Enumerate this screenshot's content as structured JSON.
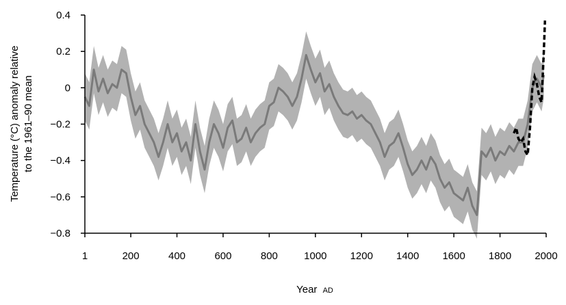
{
  "chart_data": {
    "type": "line",
    "xlabel": "Year",
    "xlabel_suffix": "AD",
    "ylabel_line1": "Temperature (°C) anomaly relative",
    "ylabel_line2": "to the 1961–90 mean",
    "xlim": [
      1,
      2000
    ],
    "ylim": [
      -0.8,
      0.4
    ],
    "x_ticks": [
      1,
      200,
      400,
      600,
      800,
      1000,
      1200,
      1400,
      1600,
      1800,
      2000
    ],
    "x_tick_labels": [
      "1",
      "200",
      "400",
      "600",
      "800",
      "1000",
      "1200",
      "1400",
      "1600",
      "1800",
      "2000"
    ],
    "y_ticks": [
      0.4,
      0.2,
      0,
      -0.2,
      -0.4,
      -0.6,
      -0.8
    ],
    "y_tick_labels": [
      "0.4",
      "0.2",
      "0",
      "−0.2",
      "−0.4",
      "−0.6",
      "−0.8"
    ],
    "grid": false,
    "colors": {
      "reconstruction": "#7a7a7a",
      "band": "#b2b2b2",
      "instrumental": "#000000"
    },
    "series": [
      {
        "style": "solid",
        "x": [
          1,
          20,
          40,
          60,
          80,
          100,
          120,
          140,
          160,
          180,
          200,
          220,
          240,
          260,
          280,
          300,
          320,
          340,
          360,
          380,
          400,
          420,
          440,
          460,
          480,
          500,
          520,
          540,
          560,
          580,
          600,
          620,
          640,
          660,
          680,
          700,
          720,
          740,
          760,
          780,
          800,
          820,
          840,
          860,
          880,
          900,
          920,
          940,
          960,
          980,
          1000,
          1020,
          1040,
          1060,
          1080,
          1100,
          1120,
          1140,
          1160,
          1180,
          1200,
          1220,
          1240,
          1260,
          1280,
          1300,
          1320,
          1340,
          1360,
          1380,
          1400,
          1420,
          1440,
          1460,
          1480,
          1500,
          1520,
          1540,
          1560,
          1580,
          1600,
          1620,
          1640,
          1660,
          1680,
          1700,
          1720,
          1740,
          1760,
          1780,
          1800,
          1820,
          1840,
          1860,
          1880,
          1900,
          1920,
          1940,
          1960,
          1980,
          1990
        ],
        "y": [
          -0.05,
          -0.1,
          0.1,
          -0.02,
          0.05,
          -0.03,
          0.02,
          0.0,
          0.1,
          0.08,
          -0.05,
          -0.15,
          -0.1,
          -0.2,
          -0.25,
          -0.3,
          -0.38,
          -0.3,
          -0.2,
          -0.3,
          -0.25,
          -0.35,
          -0.3,
          -0.4,
          -0.2,
          -0.35,
          -0.45,
          -0.3,
          -0.2,
          -0.25,
          -0.33,
          -0.22,
          -0.18,
          -0.3,
          -0.28,
          -0.22,
          -0.3,
          -0.25,
          -0.22,
          -0.2,
          -0.1,
          -0.08,
          0.0,
          -0.02,
          -0.05,
          -0.1,
          -0.05,
          0.05,
          0.18,
          0.1,
          0.03,
          0.08,
          -0.02,
          0.02,
          -0.05,
          -0.1,
          -0.14,
          -0.15,
          -0.13,
          -0.17,
          -0.15,
          -0.18,
          -0.2,
          -0.25,
          -0.3,
          -0.38,
          -0.32,
          -0.3,
          -0.25,
          -0.33,
          -0.42,
          -0.48,
          -0.45,
          -0.4,
          -0.45,
          -0.38,
          -0.42,
          -0.5,
          -0.55,
          -0.52,
          -0.58,
          -0.6,
          -0.62,
          -0.55,
          -0.65,
          -0.7,
          -0.35,
          -0.38,
          -0.33,
          -0.4,
          -0.35,
          -0.37,
          -0.32,
          -0.35,
          -0.3,
          -0.3,
          -0.2,
          0.0,
          0.05,
          0.0,
          0.07
        ],
        "band_half_width": 0.13
      },
      {
        "style": "dashed",
        "x": [
          1860,
          1870,
          1880,
          1890,
          1900,
          1910,
          1920,
          1930,
          1940,
          1950,
          1960,
          1970,
          1980,
          1990,
          1995
        ],
        "y": [
          -0.25,
          -0.22,
          -0.28,
          -0.3,
          -0.28,
          -0.35,
          -0.37,
          -0.22,
          0.0,
          0.06,
          0.02,
          -0.05,
          -0.08,
          0.2,
          0.37
        ]
      }
    ]
  }
}
